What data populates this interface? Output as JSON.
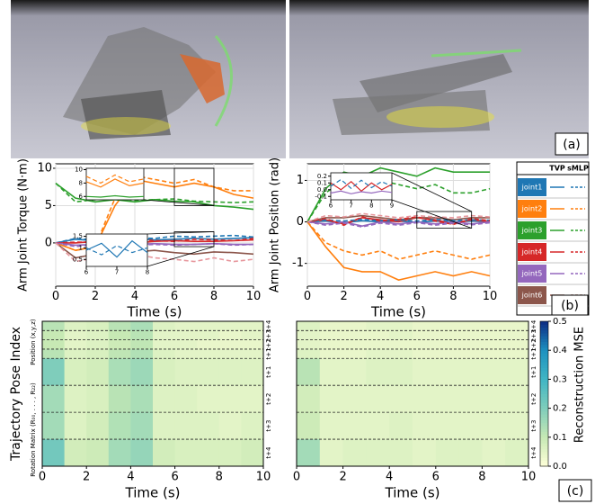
{
  "figure": {
    "panel_labels": [
      "(a)",
      "(b)",
      "(c)"
    ]
  },
  "chart_data": [
    {
      "type": "line",
      "xlabel": "Time (s)",
      "ylabel": "Arm Joint Torque (N·m)",
      "xlim": [
        0,
        10
      ],
      "ylim": [
        -5.8,
        10.6
      ],
      "xticks": [
        0,
        2,
        4,
        6,
        8,
        10
      ],
      "yticks": [
        0,
        5,
        10
      ],
      "grid": true,
      "legend_columns": [
        "TVP",
        "sMLP"
      ],
      "x": [
        0,
        1,
        2,
        3,
        4,
        5,
        6,
        7,
        8,
        9,
        10
      ],
      "series": [
        {
          "name": "joint1",
          "method": "TVP",
          "color": "#1f77b4",
          "values": [
            0,
            0.5,
            0.3,
            0.5,
            0.6,
            0.4,
            0.5,
            0.6,
            0.5,
            0.6,
            0.7
          ]
        },
        {
          "name": "joint2",
          "method": "TVP",
          "color": "#ff7f0e",
          "values": [
            0,
            -1,
            -0.5,
            5,
            8.5,
            8,
            7.5,
            8,
            7.5,
            6.5,
            6
          ]
        },
        {
          "name": "joint3",
          "method": "TVP",
          "color": "#2ca02c",
          "values": [
            8,
            6,
            5.5,
            5.8,
            5.5,
            5.8,
            5.6,
            5.5,
            5,
            4.8,
            4.5
          ]
        },
        {
          "name": "joint4",
          "method": "TVP",
          "color": "#d62728",
          "values": [
            0,
            0,
            0.2,
            0.3,
            0,
            0.2,
            0.3,
            0.2,
            0.2,
            0.3,
            0.4
          ]
        },
        {
          "name": "joint5",
          "method": "TVP",
          "color": "#9467bd",
          "values": [
            0,
            -0.3,
            -0.2,
            -0.3,
            -0.2,
            -0.1,
            -0.2,
            -0.2,
            -0.1,
            -0.2,
            -0.2
          ]
        },
        {
          "name": "joint6",
          "method": "TVP",
          "color": "#8c564b",
          "values": [
            0,
            -2,
            -1.5,
            -1,
            -1.2,
            -1,
            -1.3,
            -1.5,
            -1.2,
            -1.3,
            -1.5
          ]
        },
        {
          "name": "joint1",
          "method": "sMLP",
          "color": "#1f77b4",
          "values": [
            0,
            0.6,
            0.4,
            0.8,
            0.7,
            0.6,
            0.9,
            0.8,
            0.9,
            1.0,
            0.8
          ]
        },
        {
          "name": "joint2",
          "method": "sMLP",
          "color": "#ff7f0e",
          "values": [
            0,
            -1,
            -0.5,
            6,
            9,
            8.5,
            8,
            8.5,
            7.5,
            7,
            7
          ]
        },
        {
          "name": "joint3",
          "method": "sMLP",
          "color": "#2ca02c",
          "values": [
            8,
            5.5,
            5.8,
            6,
            5.7,
            5.8,
            5.9,
            5.6,
            5.5,
            5.4,
            5.5
          ]
        },
        {
          "name": "joint4",
          "method": "sMLP",
          "color": "#d62728",
          "values": [
            0,
            0.1,
            0.1,
            0.4,
            0.5,
            0.3,
            0.2,
            0.5,
            0.4,
            0.3,
            0.6
          ]
        },
        {
          "name": "joint5",
          "method": "sMLP",
          "color": "#9467bd",
          "values": [
            0,
            -0.5,
            -0.2,
            -0.4,
            -0.3,
            -0.2,
            -0.3,
            -0.2,
            -0.1,
            -0.3,
            -0.2
          ]
        },
        {
          "name": "joint6",
          "method": "sMLP",
          "color": "#e7969c",
          "values": [
            0,
            -2.5,
            -2,
            -1.8,
            -1.5,
            -2,
            -2.2,
            -2.5,
            -2,
            -2.5,
            -2.2
          ]
        }
      ],
      "insets": [
        {
          "xlim": [
            6,
            8
          ],
          "ylim": [
            5.5,
            10.2
          ],
          "yticks": [
            6,
            8,
            10
          ],
          "x": [
            6,
            6.5,
            7,
            7.5,
            8
          ],
          "series": [
            {
              "method": "TVP",
              "color": "#ff7f0e",
              "values": [
                8.2,
                7.4,
                8.6,
                7.6,
                8.0
              ]
            },
            {
              "method": "sMLP",
              "color": "#ff7f0e",
              "values": [
                9.0,
                8.0,
                9.2,
                8.2,
                8.6
              ]
            },
            {
              "method": "TVP",
              "color": "#2ca02c",
              "values": [
                6.0,
                5.9,
                6.1,
                5.9,
                6.0
              ]
            }
          ]
        },
        {
          "xlim": [
            6,
            8
          ],
          "ylim": [
            0.2,
            1.6
          ],
          "yticks": [
            0.5,
            1,
            1.5
          ],
          "xticks": [
            6,
            7,
            8
          ],
          "x": [
            6,
            6.5,
            7,
            7.5,
            8
          ],
          "series": [
            {
              "method": "TVP",
              "color": "#1f77b4",
              "values": [
                0.9,
                1.2,
                0.6,
                1.3,
                0.8
              ]
            },
            {
              "method": "sMLP",
              "color": "#1f77b4",
              "values": [
                1.0,
                0.7,
                1.1,
                0.8,
                1.0
              ]
            }
          ]
        }
      ]
    },
    {
      "type": "line",
      "xlabel": "Time (s)",
      "ylabel": "Arm Joint Position (rad)",
      "xlim": [
        0,
        10
      ],
      "ylim": [
        -1.55,
        1.4
      ],
      "xticks": [
        0,
        2,
        4,
        6,
        8,
        10
      ],
      "yticks": [
        -1,
        0,
        1
      ],
      "grid": true,
      "x": [
        0,
        1,
        2,
        3,
        4,
        5,
        6,
        7,
        8,
        9,
        10
      ],
      "series": [
        {
          "method": "TVP",
          "color": "#1f77b4",
          "values": [
            0,
            0.02,
            -0.02,
            0.03,
            0,
            0.02,
            -0.01,
            0.02,
            0,
            0.02,
            0
          ]
        },
        {
          "method": "TVP",
          "color": "#ff7f0e",
          "values": [
            0,
            -0.6,
            -1.1,
            -1.2,
            -1.2,
            -1.4,
            -1.3,
            -1.2,
            -1.3,
            -1.2,
            -1.3
          ]
        },
        {
          "method": "TVP",
          "color": "#2ca02c",
          "values": [
            0,
            0.8,
            1.2,
            1.1,
            1.3,
            1.2,
            1.1,
            1.3,
            1.2,
            1.2,
            1.2
          ]
        },
        {
          "method": "TVP",
          "color": "#d62728",
          "values": [
            0,
            0.05,
            -0.05,
            0.1,
            0.05,
            0,
            0.1,
            0.05,
            -0.05,
            0.05,
            0
          ]
        },
        {
          "method": "TVP",
          "color": "#9467bd",
          "values": [
            0,
            -0.05,
            0,
            -0.1,
            0,
            -0.05,
            0,
            -0.05,
            0,
            -0.05,
            0
          ]
        },
        {
          "method": "TVP",
          "color": "#8c564b",
          "values": [
            0,
            0.1,
            0.1,
            0.15,
            0.1,
            0.05,
            0.1,
            0.1,
            0.05,
            0.1,
            0.1
          ]
        },
        {
          "method": "sMLP",
          "color": "#1f77b4",
          "values": [
            0,
            0.05,
            0.02,
            0.06,
            0.03,
            0.05,
            0.02,
            0.06,
            0.03,
            0.05,
            0.04
          ]
        },
        {
          "method": "sMLP",
          "color": "#ff7f0e",
          "values": [
            0,
            -0.5,
            -0.7,
            -0.8,
            -0.7,
            -0.9,
            -0.8,
            -0.7,
            -0.8,
            -0.9,
            -0.8
          ]
        },
        {
          "method": "sMLP",
          "color": "#2ca02c",
          "values": [
            0,
            0.7,
            1,
            0.8,
            1,
            0.9,
            0.8,
            0.9,
            0.7,
            0.7,
            0.8
          ]
        },
        {
          "method": "sMLP",
          "color": "#d62728",
          "values": [
            0,
            0.08,
            -0.08,
            0.12,
            0.02,
            0.06,
            0.12,
            0.02,
            -0.06,
            0.08,
            0.03
          ]
        },
        {
          "method": "sMLP",
          "color": "#9467bd",
          "values": [
            0,
            -0.08,
            -0.03,
            -0.12,
            -0.03,
            -0.08,
            -0.02,
            -0.08,
            -0.03,
            -0.07,
            -0.02
          ]
        },
        {
          "method": "sMLP",
          "color": "#e7969c",
          "values": [
            0,
            0.15,
            0.12,
            0.2,
            0.15,
            0.1,
            0.15,
            0.12,
            0.1,
            0.15,
            0.12
          ]
        }
      ],
      "insets": [
        {
          "xlim": [
            6,
            9
          ],
          "ylim": [
            -0.15,
            0.25
          ],
          "yticks": [
            -0.1,
            {
              "value": 0,
              "label": "0.0"
            },
            0.1,
            0.2
          ],
          "xticks": [
            6,
            7,
            8,
            9
          ],
          "x": [
            6,
            6.5,
            7,
            7.5,
            8,
            8.5,
            9
          ],
          "series": [
            {
              "method": "TVP",
              "color": "#d62728",
              "values": [
                0.1,
                0.0,
                0.12,
                -0.02,
                0.1,
                0.0,
                0.08
              ]
            },
            {
              "method": "sMLP",
              "color": "#1f77b4",
              "values": [
                0.05,
                0.15,
                0.02,
                0.14,
                0.03,
                0.12,
                0.05
              ]
            },
            {
              "method": "TVP",
              "color": "#9467bd",
              "values": [
                -0.05,
                -0.02,
                -0.06,
                -0.03,
                -0.05,
                -0.02,
                -0.04
              ]
            }
          ]
        }
      ]
    },
    {
      "type": "heatmap",
      "xlabel": "Time (s)",
      "ylabel": "Trajectory Pose Index",
      "ysublabels": [
        "Rotation Matrix (R₀₀, . . . , R₂₂)",
        "Position (x,y,z)"
      ],
      "xlim": [
        0,
        10
      ],
      "xticks": [
        0,
        2,
        4,
        6,
        8,
        10
      ],
      "row_labels": [
        "t+4",
        "t+3",
        "t+2",
        "t+1",
        "t+1",
        "t+2",
        "t+3",
        "t+4"
      ],
      "values": [
        [
          0.12,
          0.06,
          0.07,
          0.12,
          0.14,
          0.06,
          0.05,
          0.05,
          0.05,
          0.05
        ],
        [
          0.1,
          0.05,
          0.06,
          0.1,
          0.12,
          0.05,
          0.05,
          0.05,
          0.04,
          0.05
        ],
        [
          0.1,
          0.05,
          0.06,
          0.09,
          0.11,
          0.05,
          0.05,
          0.04,
          0.04,
          0.04
        ],
        [
          0.12,
          0.06,
          0.07,
          0.11,
          0.13,
          0.06,
          0.05,
          0.05,
          0.05,
          0.05
        ],
        [
          0.2,
          0.07,
          0.08,
          0.14,
          0.16,
          0.07,
          0.06,
          0.06,
          0.06,
          0.06
        ],
        [
          0.15,
          0.06,
          0.07,
          0.12,
          0.14,
          0.06,
          0.06,
          0.05,
          0.05,
          0.05
        ],
        [
          0.15,
          0.06,
          0.08,
          0.13,
          0.15,
          0.06,
          0.06,
          0.06,
          0.05,
          0.06
        ],
        [
          0.22,
          0.08,
          0.09,
          0.15,
          0.17,
          0.08,
          0.07,
          0.07,
          0.07,
          0.08
        ]
      ]
    },
    {
      "type": "heatmap",
      "xlabel": "Time (s)",
      "xlim": [
        0,
        10
      ],
      "xticks": [
        0,
        2,
        4,
        6,
        8,
        10
      ],
      "row_labels": [
        "t+4",
        "t+3",
        "t+2",
        "t+1",
        "t+1",
        "t+2",
        "t+3",
        "t+4"
      ],
      "values": [
        [
          0.06,
          0.04,
          0.04,
          0.05,
          0.05,
          0.04,
          0.04,
          0.04,
          0.04,
          0.04
        ],
        [
          0.05,
          0.04,
          0.04,
          0.04,
          0.05,
          0.04,
          0.04,
          0.04,
          0.04,
          0.04
        ],
        [
          0.05,
          0.04,
          0.04,
          0.04,
          0.04,
          0.04,
          0.04,
          0.04,
          0.04,
          0.04
        ],
        [
          0.06,
          0.04,
          0.04,
          0.05,
          0.05,
          0.04,
          0.04,
          0.04,
          0.04,
          0.04
        ],
        [
          0.12,
          0.05,
          0.05,
          0.06,
          0.06,
          0.05,
          0.05,
          0.05,
          0.05,
          0.05
        ],
        [
          0.08,
          0.05,
          0.05,
          0.05,
          0.05,
          0.05,
          0.05,
          0.05,
          0.05,
          0.05
        ],
        [
          0.09,
          0.05,
          0.05,
          0.05,
          0.06,
          0.05,
          0.05,
          0.05,
          0.05,
          0.05
        ],
        [
          0.15,
          0.05,
          0.06,
          0.06,
          0.06,
          0.05,
          0.06,
          0.06,
          0.05,
          0.06
        ]
      ],
      "colorbar": {
        "label": "Reconstruction MSE",
        "lim": [
          0,
          0.5
        ],
        "ticks": [
          {
            "value": 0,
            "label": "0.0"
          },
          0.1,
          0.2,
          0.3,
          0.4,
          0.5
        ]
      }
    }
  ]
}
